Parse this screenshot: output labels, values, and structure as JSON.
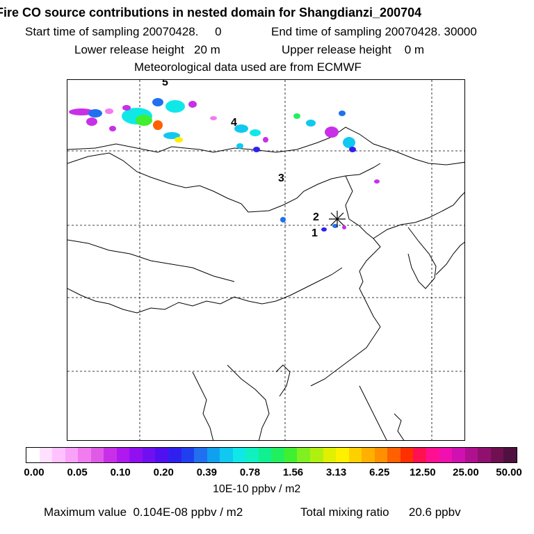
{
  "header": {
    "title": "Fire CO source contributions in nested domain for Shangdianzi_200704",
    "line2_start": "Start time of sampling 20070428.     0",
    "line2_end": "End time of sampling 20070428. 30000",
    "line3_lower": "Lower release height   20 m",
    "line3_upper": "Upper release height    0 m",
    "line4": "Meteorological data used are from ECMWF"
  },
  "map": {
    "labels": [
      "5",
      "4",
      "3",
      "2",
      "1"
    ],
    "station_marker": "asterisk"
  },
  "colorbar": {
    "ticks": [
      "0.00",
      "0.05",
      "0.10",
      "0.20",
      "0.39",
      "0.78",
      "1.56",
      "3.13",
      "6.25",
      "12.50",
      "25.00",
      "50.00"
    ],
    "colors": [
      "#ffffff",
      "#ffe0ff",
      "#ffc2ff",
      "#f8a2f8",
      "#f07cf0",
      "#e05ae8",
      "#c830e8",
      "#b018f0",
      "#9010f0",
      "#7010f0",
      "#5010f0",
      "#3020f0",
      "#2040f0",
      "#2070f0",
      "#10a0f0",
      "#10c8f0",
      "#10e8e8",
      "#10f0c0",
      "#10f090",
      "#20f060",
      "#40f030",
      "#80f020",
      "#b0f010",
      "#e0f000",
      "#fff000",
      "#ffd000",
      "#ffb000",
      "#ff9000",
      "#ff6000",
      "#ff3000",
      "#ff1050",
      "#ff1090",
      "#f010b0",
      "#d010b0",
      "#b01090",
      "#901070",
      "#701050",
      "#501040"
    ],
    "unit": "10E-10 ppbv / m2"
  },
  "footer": {
    "max_label": "Maximum value  0.104E-08 ppbv / m2",
    "total_label": "Total mixing ratio      20.6 ppbv"
  }
}
